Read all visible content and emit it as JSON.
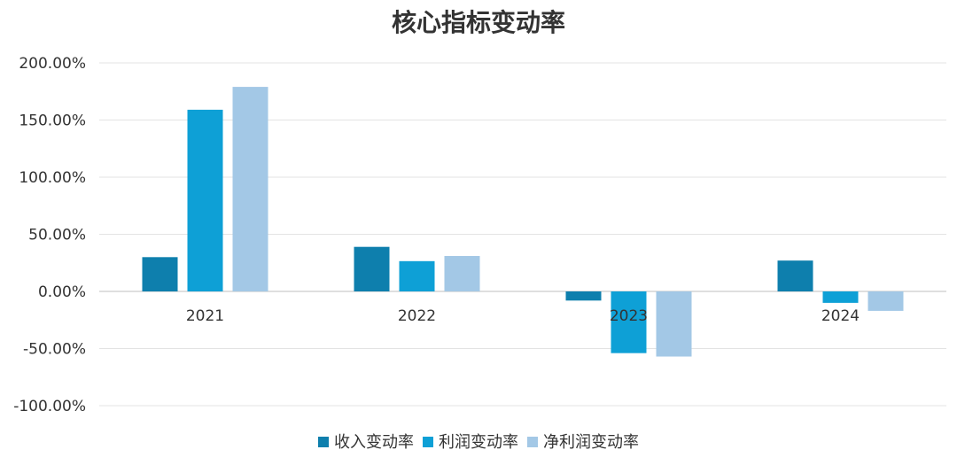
{
  "chart_data": {
    "type": "bar",
    "title": "核心指标变动率",
    "categories": [
      "2021",
      "2022",
      "2023",
      "2024"
    ],
    "series": [
      {
        "name": "收入变动率",
        "color": "#0e7fad",
        "values": [
          30,
          39,
          -8,
          27
        ]
      },
      {
        "name": "利润变动率",
        "color": "#0ea0d6",
        "values": [
          159,
          26.5,
          -54,
          -10
        ]
      },
      {
        "name": "净利润变动率",
        "color": "#a3c8e6",
        "values": [
          179,
          31,
          -57,
          -17
        ]
      }
    ],
    "ylim": [
      -100,
      200
    ],
    "yticks": [
      200,
      150,
      100,
      50,
      0,
      -50,
      -100
    ],
    "ytick_labels": [
      "200.00%",
      "150.00%",
      "100.00%",
      "50.00%",
      "0.00%",
      "-50.00%",
      "-100.00%"
    ],
    "xlabel": "",
    "ylabel": "",
    "grid": true,
    "legend_position": "bottom"
  }
}
